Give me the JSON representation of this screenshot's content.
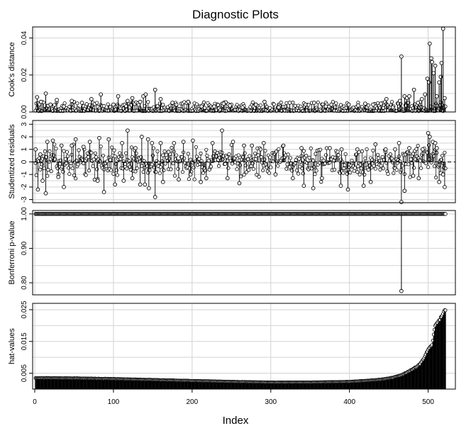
{
  "figure": {
    "title": "Diagnostic Plots",
    "xlabel": "Index",
    "xlim": [
      0,
      522
    ],
    "xticks": [
      0,
      100,
      200,
      300,
      400,
      500
    ],
    "grid": true
  },
  "chart_data": [
    {
      "type": "scatter",
      "ylabel": "Cook's distance",
      "ylim": [
        0,
        0.046
      ],
      "yticks": [
        0.0,
        0.02,
        0.04
      ],
      "ytick_labels": [
        "0.00",
        "0.02",
        "0.04"
      ],
      "grid": true,
      "baseline": 0,
      "base_y": [
        0.0005,
        0.0055
      ],
      "spikes": [
        [
          3,
          0.008
        ],
        [
          8,
          0.0055
        ],
        [
          14,
          0.01
        ],
        [
          20,
          0.004
        ],
        [
          28,
          0.0065
        ],
        [
          37,
          0.003
        ],
        [
          47,
          0.006
        ],
        [
          60,
          0.005
        ],
        [
          72,
          0.007
        ],
        [
          84,
          0.0095
        ],
        [
          100,
          0.004
        ],
        [
          106,
          0.0085
        ],
        [
          118,
          0.006
        ],
        [
          124,
          0.0075
        ],
        [
          134,
          0.0055
        ],
        [
          138,
          0.0085
        ],
        [
          141,
          0.0095
        ],
        [
          153,
          0.012
        ],
        [
          160,
          0.007
        ],
        [
          175,
          0.005
        ],
        [
          180,
          0.004
        ],
        [
          195,
          0.0055
        ],
        [
          212,
          0.003
        ],
        [
          228,
          0.003
        ],
        [
          240,
          0.0045
        ],
        [
          248,
          0.0035
        ],
        [
          264,
          0.0025
        ],
        [
          281,
          0.004
        ],
        [
          292,
          0.0055
        ],
        [
          310,
          0.0025
        ],
        [
          324,
          0.005
        ],
        [
          344,
          0.004
        ],
        [
          355,
          0.005
        ],
        [
          370,
          0.003
        ],
        [
          377,
          0.004
        ],
        [
          399,
          0.004
        ],
        [
          411,
          0.0035
        ],
        [
          420,
          0.0045
        ],
        [
          430,
          0.004
        ],
        [
          440,
          0.0045
        ],
        [
          447,
          0.007
        ],
        [
          455,
          0.0025
        ],
        [
          464,
          0.006
        ],
        [
          466,
          0.03
        ],
        [
          470,
          0.0085
        ],
        [
          473,
          0.0075
        ],
        [
          476,
          0.0085
        ],
        [
          482,
          0.012
        ],
        [
          487,
          0.005
        ],
        [
          492,
          0.007
        ],
        [
          496,
          0.0095
        ],
        [
          499,
          0.018
        ],
        [
          501,
          0.016
        ],
        [
          502,
          0.037
        ],
        [
          504,
          0.029
        ],
        [
          505,
          0.027
        ],
        [
          507,
          0.021
        ],
        [
          509,
          0.025
        ],
        [
          511,
          0.0085
        ],
        [
          514,
          0.016
        ],
        [
          516,
          0.019
        ],
        [
          517,
          0.0265
        ],
        [
          519,
          0.045
        ],
        [
          521,
          0.0075
        ]
      ]
    },
    {
      "type": "scatter",
      "ylabel": "Studentized residuals",
      "ylim": [
        -3.25,
        3.3
      ],
      "yticks": [
        -3,
        -2,
        -1,
        0,
        1,
        2,
        3
      ],
      "ytick_labels": [
        "-3",
        "-2",
        "-1",
        "0",
        "1",
        "2",
        "3"
      ],
      "grid": true,
      "reference_line": 0,
      "reference_line_style": "dashed",
      "spikes": [
        [
          1,
          1.0
        ],
        [
          4,
          -2.2
        ],
        [
          7,
          0.6
        ],
        [
          10,
          -1.5
        ],
        [
          14,
          -2.5
        ],
        [
          16,
          1.6
        ],
        [
          23,
          1.7
        ],
        [
          30,
          -1.2
        ],
        [
          34,
          1.3
        ],
        [
          37,
          -2.0
        ],
        [
          47,
          1.3
        ],
        [
          52,
          1.8
        ],
        [
          62,
          1.2
        ],
        [
          70,
          1.6
        ],
        [
          80,
          -1.5
        ],
        [
          82,
          1.9
        ],
        [
          88,
          -2.4
        ],
        [
          94,
          1.8
        ],
        [
          102,
          -1.8
        ],
        [
          111,
          1.5
        ],
        [
          113,
          -1.5
        ],
        [
          118,
          2.5
        ],
        [
          124,
          -1.3
        ],
        [
          128,
          1.1
        ],
        [
          134,
          -1.8
        ],
        [
          136,
          2.0
        ],
        [
          140,
          -1.8
        ],
        [
          144,
          1.8
        ],
        [
          145,
          -2.1
        ],
        [
          149,
          1.5
        ],
        [
          153,
          -2.8
        ],
        [
          160,
          1.5
        ],
        [
          163,
          -1.6
        ],
        [
          170,
          0.8
        ],
        [
          177,
          1.5
        ],
        [
          183,
          -1.4
        ],
        [
          189,
          1.6
        ],
        [
          198,
          -1.0
        ],
        [
          201,
          1.7
        ],
        [
          211,
          -1.6
        ],
        [
          218,
          -1.3
        ],
        [
          226,
          1.5
        ],
        [
          238,
          2.5
        ],
        [
          245,
          -1.3
        ],
        [
          252,
          1.6
        ],
        [
          260,
          -1.7
        ],
        [
          266,
          1.3
        ],
        [
          276,
          1.3
        ],
        [
          291,
          1.5
        ],
        [
          306,
          -1.0
        ],
        [
          316,
          1.3
        ],
        [
          328,
          -1.3
        ],
        [
          339,
          1.1
        ],
        [
          342,
          -1.9
        ],
        [
          354,
          -2.1
        ],
        [
          365,
          -1.3
        ],
        [
          375,
          1.1
        ],
        [
          389,
          -1.9
        ],
        [
          390,
          1.0
        ],
        [
          398,
          -2.2
        ],
        [
          410,
          1.0
        ],
        [
          418,
          -1.9
        ],
        [
          427,
          -1.6
        ],
        [
          433,
          1.4
        ],
        [
          446,
          1.0
        ],
        [
          458,
          1.0
        ],
        [
          463,
          1.5
        ],
        [
          466,
          -3.2
        ],
        [
          470,
          -2.3
        ],
        [
          476,
          1.1
        ],
        [
          481,
          -1.1
        ],
        [
          488,
          -1.3
        ],
        [
          493,
          1.0
        ],
        [
          500,
          2.3
        ],
        [
          502,
          2.0
        ],
        [
          506,
          1.6
        ],
        [
          509,
          1.5
        ],
        [
          511,
          1.1
        ],
        [
          514,
          -1.6
        ],
        [
          516,
          -0.9
        ],
        [
          519,
          -1.0
        ],
        [
          521,
          -2.0
        ]
      ]
    },
    {
      "type": "scatter",
      "ylabel": "Bonferroni p-value",
      "ylim": [
        0.765,
        1.01
      ],
      "yticks": [
        0.8,
        0.9,
        1.0
      ],
      "ytick_labels": [
        "0.80",
        "0.90",
        "1.00"
      ],
      "grid": true,
      "constant_value": 1.0,
      "constant_range": [
        1,
        522
      ],
      "outlier": [
        466,
        0.776
      ]
    },
    {
      "type": "scatter",
      "ylabel": "hat-values",
      "ylim": [
        0.0,
        0.027
      ],
      "yticks": [
        0.005,
        0.015,
        0.025
      ],
      "ytick_labels": [
        "0.005",
        "0.015",
        "0.025"
      ],
      "grid": true,
      "baseline": 0,
      "hat_curve": [
        [
          1,
          0.0035
        ],
        [
          50,
          0.0034
        ],
        [
          100,
          0.0032
        ],
        [
          150,
          0.0029
        ],
        [
          200,
          0.0026
        ],
        [
          250,
          0.0023
        ],
        [
          300,
          0.0021
        ],
        [
          350,
          0.0021
        ],
        [
          400,
          0.0023
        ],
        [
          420,
          0.0026
        ],
        [
          440,
          0.003
        ],
        [
          455,
          0.0036
        ],
        [
          465,
          0.0043
        ],
        [
          475,
          0.0055
        ],
        [
          485,
          0.007
        ],
        [
          490,
          0.008
        ],
        [
          495,
          0.0098
        ],
        [
          500,
          0.0125
        ],
        [
          505,
          0.014
        ],
        [
          509,
          0.02
        ],
        [
          514,
          0.0215
        ],
        [
          518,
          0.0235
        ],
        [
          521,
          0.025
        ]
      ]
    }
  ]
}
